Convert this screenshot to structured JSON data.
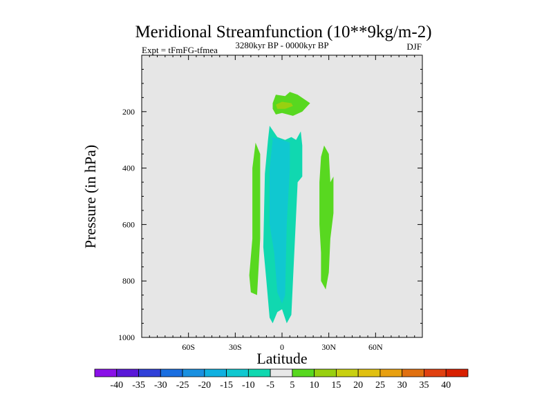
{
  "chart_data": {
    "type": "contour",
    "title": "Meridional Streamfunction (10**9kg/m-2)",
    "left_label": "Expt = tFmFG-tfmea",
    "center_label": "3280kyr BP - 0000kyr BP",
    "right_label": "DJF",
    "xlabel": "Latitude",
    "ylabel": "Pressure (in hPa)",
    "xlim": [
      -90,
      90
    ],
    "ylim": [
      1000,
      0
    ],
    "x_ticks": [
      -60,
      -30,
      0,
      30,
      60
    ],
    "x_tick_labels": [
      "60S",
      "30S",
      "0",
      "30N",
      "60N"
    ],
    "y_ticks": [
      200,
      400,
      600,
      800,
      1000
    ],
    "y_tick_labels": [
      "200",
      "400",
      "600",
      "800",
      "1000"
    ],
    "background_color": "#e6e6e6",
    "contour_regions": [
      {
        "name": "upper-positive-cell",
        "level": "5 to 10",
        "points": [
          [
            -6,
            170
          ],
          [
            -4,
            140
          ],
          [
            2,
            145
          ],
          [
            5,
            130
          ],
          [
            10,
            140
          ],
          [
            18,
            170
          ],
          [
            13,
            200
          ],
          [
            7,
            215
          ],
          [
            0,
            205
          ],
          [
            -4,
            210
          ],
          [
            -6,
            190
          ]
        ]
      },
      {
        "name": "upper-positive-core",
        "level": "10 to 15",
        "points": [
          [
            -4,
            175
          ],
          [
            0,
            165
          ],
          [
            6,
            170
          ],
          [
            7,
            180
          ],
          [
            2,
            190
          ],
          [
            -3,
            190
          ]
        ]
      },
      {
        "name": "left-positive-cell",
        "level": "5 to 10",
        "points": [
          [
            -17,
            310
          ],
          [
            -14,
            350
          ],
          [
            -14,
            650
          ],
          [
            -16,
            850
          ],
          [
            -20,
            840
          ],
          [
            -21,
            780
          ],
          [
            -19,
            650
          ],
          [
            -19,
            400
          ]
        ]
      },
      {
        "name": "right-positive-cell",
        "level": "5 to 10",
        "points": [
          [
            27,
            320
          ],
          [
            30,
            350
          ],
          [
            31,
            450
          ],
          [
            33,
            430
          ],
          [
            33,
            560
          ],
          [
            31,
            650
          ],
          [
            30,
            770
          ],
          [
            28,
            830
          ],
          [
            25,
            800
          ],
          [
            25,
            700
          ],
          [
            24,
            600
          ],
          [
            24,
            450
          ],
          [
            25,
            360
          ]
        ]
      },
      {
        "name": "central-negative-cell",
        "level": "-10 to -5",
        "points": [
          [
            -8,
            250
          ],
          [
            -3,
            290
          ],
          [
            2,
            300
          ],
          [
            6,
            290
          ],
          [
            9,
            300
          ],
          [
            12,
            270
          ],
          [
            13,
            320
          ],
          [
            13,
            430
          ],
          [
            10,
            450
          ],
          [
            7,
            800
          ],
          [
            6,
            920
          ],
          [
            3,
            950
          ],
          [
            0,
            900
          ],
          [
            -3,
            910
          ],
          [
            -6,
            950
          ],
          [
            -8,
            930
          ],
          [
            -10,
            800
          ],
          [
            -12,
            680
          ],
          [
            -11,
            420
          ],
          [
            -9,
            300
          ]
        ]
      },
      {
        "name": "central-negative-core",
        "level": "-15 to -10",
        "points": [
          [
            -7,
            290
          ],
          [
            0,
            300
          ],
          [
            5,
            310
          ],
          [
            5,
            400
          ],
          [
            3,
            600
          ],
          [
            2,
            850
          ],
          [
            0,
            880
          ],
          [
            -3,
            840
          ],
          [
            -5,
            700
          ],
          [
            -8,
            600
          ],
          [
            -8,
            400
          ],
          [
            -6,
            300
          ]
        ]
      }
    ],
    "colorbar": {
      "labels": [
        "-40",
        "-35",
        "-30",
        "-25",
        "-20",
        "-15",
        "-10",
        "-5",
        "5",
        "10",
        "15",
        "20",
        "25",
        "30",
        "35",
        "40"
      ],
      "colors": [
        "#8a10e8",
        "#5a18d8",
        "#3040d8",
        "#1a6ee0",
        "#1a90e0",
        "#10b0e0",
        "#10c8d0",
        "#10d8b0",
        "#e8e8e8",
        "#58d820",
        "#98d010",
        "#c8d010",
        "#e0c010",
        "#e8a010",
        "#e07010",
        "#e04010",
        "#d82000"
      ]
    }
  }
}
